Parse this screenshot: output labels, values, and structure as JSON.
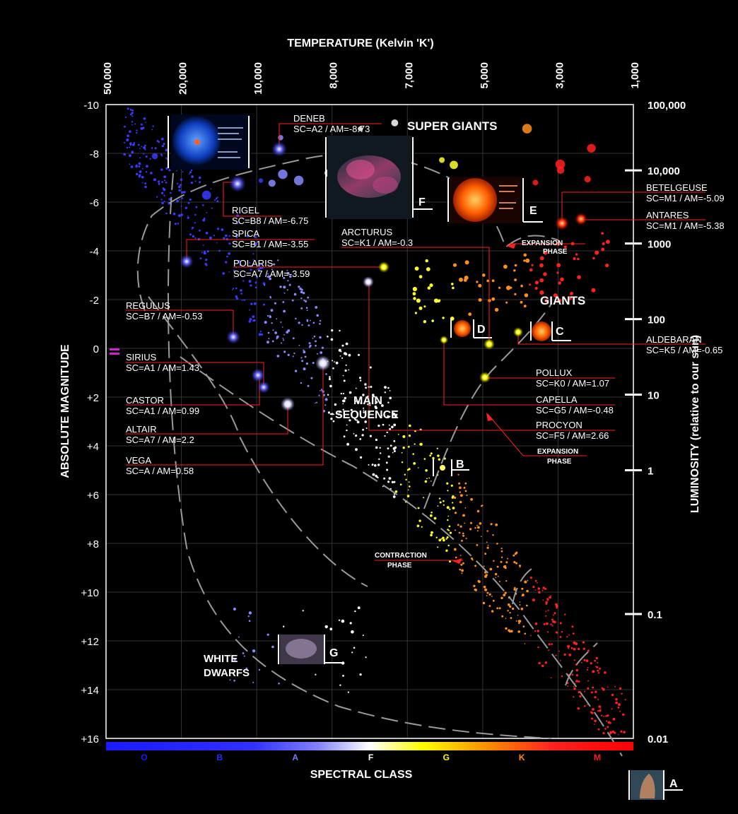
{
  "chart_data": {
    "type": "scatter",
    "title": "",
    "xlabel_top": "TEMPERATURE (Kelvin 'K')",
    "xlabel_bottom": "SPECTRAL CLASS",
    "ylabel_left": "ABSOLUTE MAGNITUDE",
    "ylabel_right": "LUMINOSITY (relative to our sun)",
    "ylim": [
      -10,
      16
    ],
    "y_ticks": [
      "-10",
      "-8",
      "-6",
      "-4",
      "-2",
      "0",
      "+2",
      "+4",
      "+6",
      "+8",
      "+10",
      "+12",
      "+14",
      "+16"
    ],
    "temperature_ticks": [
      "50,000",
      "20,000",
      "10,000",
      "8,000",
      "7,000",
      "5,000",
      "3,000",
      "1,000"
    ],
    "luminosity_ticks": [
      {
        "label": "100,000",
        "mag": -10
      },
      {
        "label": "10,000",
        "mag": -7.3
      },
      {
        "label": "1000",
        "mag": -4.3
      },
      {
        "label": "100",
        "mag": -1.2
      },
      {
        "label": "10",
        "mag": 1.9
      },
      {
        "label": "1",
        "mag": 5
      },
      {
        "label": "0.1",
        "mag": 10.9
      },
      {
        "label": "0.01",
        "mag": 16
      }
    ],
    "spectral_classes": [
      {
        "label": "O",
        "color": "#1a1aff"
      },
      {
        "label": "B",
        "color": "#2a2aff"
      },
      {
        "label": "A",
        "color": "#7a7aff"
      },
      {
        "label": "F",
        "color": "#ffffff"
      },
      {
        "label": "G",
        "color": "#ffff00"
      },
      {
        "label": "K",
        "color": "#ff8c00"
      },
      {
        "label": "M",
        "color": "#ff1a1a"
      }
    ],
    "regions": {
      "super_giants": "SUPER GIANTS",
      "giants": "GIANTS",
      "main_sequence_1": "MAIN",
      "main_sequence_2": "SEQUENCE",
      "white_dwarfs_1": "WHITE",
      "white_dwarfs_2": "DWARFS"
    },
    "phase_labels": {
      "expansion_1a": "EXPANSION",
      "expansion_1b": "PHASE",
      "expansion_2a": "EXPANSION",
      "expansion_2b": "PHASE",
      "contraction_a": "CONTRACTION",
      "contraction_b": "PHASE"
    },
    "stage_markers": [
      "A",
      "B",
      "C",
      "D",
      "E",
      "F",
      "G"
    ],
    "named_stars": [
      {
        "name": "DENEB",
        "info": "SC=A2 / AM=-8.73",
        "sc": "A2",
        "am": -8.73
      },
      {
        "name": "RIGEL",
        "info": "SC=B8 / AM=-6.75",
        "sc": "B8",
        "am": -6.75
      },
      {
        "name": "SPICA",
        "info": "SC=B1 / AM=-3.55",
        "sc": "B1",
        "am": -3.55
      },
      {
        "name": "POLARIS",
        "info": "SC=A7 / AM=-3.59",
        "sc": "A7",
        "am": -3.59
      },
      {
        "name": "ARCTURUS",
        "info": "SC=K1 / AM=-0.3",
        "sc": "K1",
        "am": -0.3
      },
      {
        "name": "REGULUS",
        "info": "SC=B7 / AM=-0.53",
        "sc": "B7",
        "am": -0.53
      },
      {
        "name": "SIRIUS",
        "info": "SC=A1 / AM=1.43",
        "sc": "A1",
        "am": 1.43
      },
      {
        "name": "CASTOR",
        "info": "SC=A1 / AM=0.99",
        "sc": "A1",
        "am": 0.99
      },
      {
        "name": "ALTAIR",
        "info": "SC=A7 / AM=2.2",
        "sc": "A7",
        "am": 2.2
      },
      {
        "name": "VEGA",
        "info": "SC=A / AM=0.58",
        "sc": "A",
        "am": 0.58
      },
      {
        "name": "BETELGEUSE",
        "info": "SC=M1 / AM=-5.09",
        "sc": "M1",
        "am": -5.09
      },
      {
        "name": "ANTARES",
        "info": "SC=M1 / AM=-5.38",
        "sc": "M1",
        "am": -5.38
      },
      {
        "name": "ALDEBARAN",
        "info": "SC=K5 / AM=-0.65",
        "sc": "K5",
        "am": -0.65
      },
      {
        "name": "POLLUX",
        "info": "SC=K0 / AM=1.07",
        "sc": "K0",
        "am": 1.07
      },
      {
        "name": "CAPELLA",
        "info": "SC=G5 / AM=-0.48",
        "sc": "G5",
        "am": -0.48
      },
      {
        "name": "PROCYON",
        "info": "SC=F5 / AM=2.66",
        "sc": "F5",
        "am": 2.66
      }
    ],
    "grid": true
  }
}
